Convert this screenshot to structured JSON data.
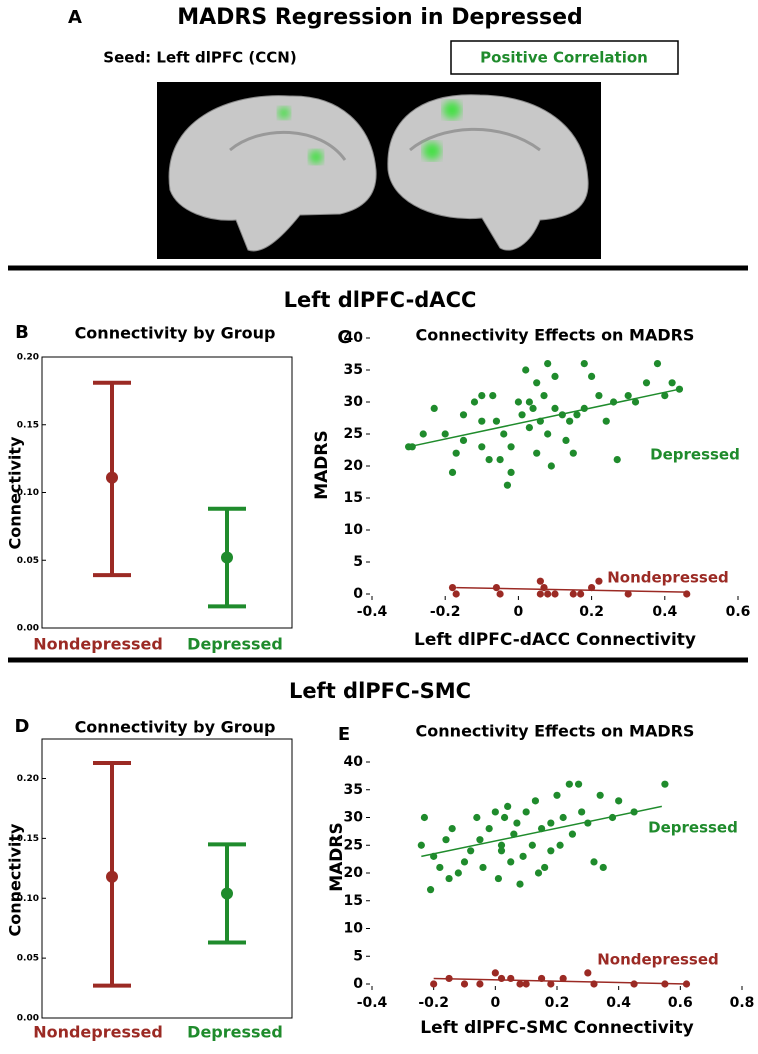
{
  "figure": {
    "panel_label": "A",
    "title": "MADRS Regression in Depressed",
    "seed": "Seed: Left dlPFC (CCN)",
    "legend": "Positive Correlation"
  },
  "sections": [
    "Left dlPFC-dACC",
    "Left dlPFC-SMC"
  ],
  "chart_data": [
    {
      "type": "errorbar",
      "label": "B",
      "title": "Connectivity by Group",
      "ylabel": "Connectivity",
      "categories": [
        "Nondepressed",
        "Depressed"
      ],
      "colors": [
        "#9b2a24",
        "#1f8b2c"
      ],
      "values": [
        0.111,
        0.052
      ],
      "lower": [
        0.039,
        0.016
      ],
      "upper": [
        0.181,
        0.088
      ],
      "ylim": [
        0,
        0.2
      ],
      "yticks": [
        {
          "value": 0,
          "label": "0.00"
        },
        {
          "value": 0.05,
          "label": "0.05"
        },
        {
          "value": 0.1,
          "label": "0.10"
        },
        {
          "value": 0.15,
          "label": "0.15"
        },
        {
          "value": 0.2,
          "label": "0.20"
        }
      ]
    },
    {
      "type": "scatter",
      "label": "C",
      "title": "Connectivity Effects on MADRS",
      "xlabel": "Left dlPFC-dACC Connectivity",
      "ylabel": "MADRS",
      "xlim": [
        -0.4,
        0.6
      ],
      "xticks": [
        -0.4,
        -0.2,
        0,
        0.2,
        0.4,
        0.6
      ],
      "ylim": [
        0,
        40
      ],
      "yticks": [
        0,
        5,
        10,
        15,
        20,
        25,
        30,
        35,
        40
      ],
      "series": [
        {
          "name": "Depressed",
          "color": "#1f8b2c",
          "x": [
            -0.3,
            -0.29,
            -0.26,
            -0.23,
            -0.2,
            -0.18,
            -0.17,
            -0.15,
            -0.12,
            -0.1,
            -0.1,
            -0.08,
            -0.07,
            -0.06,
            -0.05,
            -0.04,
            -0.03,
            -0.02,
            -0.02,
            0,
            0.01,
            0.02,
            0.03,
            0.04,
            0.05,
            0.05,
            0.06,
            0.07,
            0.08,
            0.08,
            0.09,
            0.1,
            0.1,
            0.12,
            0.13,
            0.14,
            0.15,
            0.16,
            0.18,
            0.18,
            0.2,
            0.22,
            0.24,
            0.26,
            0.27,
            0.3,
            0.32,
            0.35,
            0.38,
            0.4,
            0.42,
            0.44,
            -0.15,
            0.03,
            -0.1
          ],
          "values": [
            23,
            23,
            25,
            29,
            25,
            19,
            22,
            24,
            30,
            27,
            23,
            21,
            31,
            27,
            21,
            25,
            17,
            23,
            19,
            30,
            28,
            35,
            26,
            29,
            22,
            33,
            27,
            31,
            36,
            25,
            20,
            29,
            34,
            28,
            24,
            27,
            22,
            28,
            29,
            36,
            34,
            31,
            27,
            30,
            21,
            31,
            30,
            33,
            36,
            31,
            33,
            32,
            28,
            30,
            31
          ],
          "fit_x": [
            -0.3,
            0.44
          ],
          "fit_y": [
            23,
            32
          ]
        },
        {
          "name": "Nondepressed",
          "color": "#9b2a24",
          "x": [
            -0.18,
            -0.17,
            -0.06,
            -0.05,
            0.06,
            0.07,
            0.08,
            0.1,
            0.15,
            0.17,
            0.2,
            0.22,
            0.3,
            0.46,
            0.06
          ],
          "values": [
            1,
            0,
            1,
            0,
            2,
            1,
            0,
            0,
            0,
            0,
            1,
            2,
            0,
            0,
            0
          ],
          "fit_x": [
            -0.17,
            0.46
          ],
          "fit_y": [
            1,
            0.3
          ]
        }
      ]
    },
    {
      "type": "errorbar",
      "label": "D",
      "title": "Connectivity by Group",
      "ylabel": "Connectivity",
      "categories": [
        "Nondepressed",
        "Depressed"
      ],
      "colors": [
        "#9b2a24",
        "#1f8b2c"
      ],
      "values": [
        0.118,
        0.104
      ],
      "lower": [
        0.027,
        0.063
      ],
      "upper": [
        0.213,
        0.145
      ],
      "ylim": [
        0,
        0.233
      ],
      "yticks": [
        {
          "value": 0,
          "label": "0.00"
        },
        {
          "value": 0.05,
          "label": "0.05"
        },
        {
          "value": 0.1,
          "label": "0.10"
        },
        {
          "value": 0.15,
          "label": "0.15"
        },
        {
          "value": 0.2,
          "label": "0.20"
        }
      ]
    },
    {
      "type": "scatter",
      "label": "E",
      "title": "Connectivity Effects on MADRS",
      "xlabel": "Left dlPFC-SMC Connectivity",
      "ylabel": "MADRS",
      "xlim": [
        -0.4,
        0.8
      ],
      "xticks": [
        -0.4,
        -0.2,
        0,
        0.2,
        0.4,
        0.6,
        0.8
      ],
      "ylim": [
        0,
        40
      ],
      "yticks": [
        0,
        5,
        10,
        15,
        20,
        25,
        30,
        35,
        40
      ],
      "series": [
        {
          "name": "Depressed",
          "color": "#1f8b2c",
          "x": [
            -0.24,
            -0.23,
            -0.21,
            -0.2,
            -0.18,
            -0.16,
            -0.15,
            -0.14,
            -0.12,
            -0.1,
            -0.08,
            -0.06,
            -0.05,
            -0.04,
            -0.02,
            0,
            0.01,
            0.02,
            0.03,
            0.04,
            0.05,
            0.06,
            0.07,
            0.08,
            0.09,
            0.1,
            0.12,
            0.13,
            0.14,
            0.15,
            0.16,
            0.18,
            0.2,
            0.21,
            0.22,
            0.24,
            0.25,
            0.27,
            0.28,
            0.3,
            0.32,
            0.34,
            0.35,
            0.38,
            0.4,
            0.45,
            0.55,
            0.18,
            0.02
          ],
          "values": [
            25,
            30,
            17,
            23,
            21,
            26,
            19,
            28,
            20,
            22,
            24,
            30,
            26,
            21,
            28,
            31,
            19,
            25,
            30,
            32,
            22,
            27,
            29,
            18,
            23,
            31,
            25,
            33,
            20,
            28,
            21,
            29,
            34,
            25,
            30,
            36,
            27,
            36,
            31,
            29,
            22,
            34,
            21,
            30,
            33,
            31,
            36,
            24,
            24
          ],
          "fit_x": [
            -0.24,
            0.54
          ],
          "fit_y": [
            23,
            32
          ]
        },
        {
          "name": "Nondepressed",
          "color": "#9b2a24",
          "x": [
            -0.2,
            -0.15,
            -0.1,
            -0.05,
            0,
            0.02,
            0.05,
            0.08,
            0.1,
            0.15,
            0.18,
            0.22,
            0.3,
            0.32,
            0.45,
            0.55,
            0.62
          ],
          "values": [
            0,
            1,
            0,
            0,
            2,
            1,
            1,
            0,
            0,
            1,
            0,
            1,
            2,
            0,
            0,
            0,
            0
          ],
          "fit_x": [
            -0.2,
            0.62
          ],
          "fit_y": [
            1,
            0
          ]
        }
      ]
    }
  ]
}
